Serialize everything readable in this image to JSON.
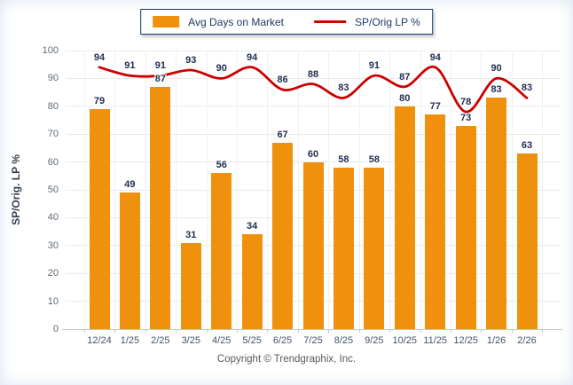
{
  "legend": {
    "bar_label": "Avg Days on Market",
    "line_label": "SP/Orig LP %"
  },
  "y_axis": {
    "title": "SP/Orig. LP %",
    "tick_min": 0,
    "tick_max": 100,
    "tick_step": 10
  },
  "footer": {
    "copyright": "Copyright © Trendgraphix, Inc."
  },
  "colors": {
    "bar": "#F0910D",
    "line": "#CC0000",
    "value_label": "#1F2E50",
    "legend_border": "#17375E"
  },
  "chart_data": {
    "type": "bar",
    "title": "",
    "xlabel": "",
    "ylabel": "SP/Orig. LP %",
    "ylim": [
      0,
      100
    ],
    "grid": true,
    "legend_position": "top-center",
    "categories": [
      "12/24",
      "1/25",
      "2/25",
      "3/25",
      "4/25",
      "5/25",
      "6/25",
      "7/25",
      "8/25",
      "9/25",
      "10/25",
      "11/25",
      "12/25",
      "1/26",
      "2/26"
    ],
    "series": [
      {
        "name": "Avg Days on Market",
        "type": "bar",
        "color": "#F0910D",
        "values": [
          79,
          49,
          87,
          31,
          56,
          34,
          67,
          60,
          58,
          58,
          80,
          77,
          73,
          83,
          63
        ]
      },
      {
        "name": "SP/Orig LP %",
        "type": "line",
        "color": "#CC0000",
        "values": [
          94,
          91,
          91,
          93,
          90,
          94,
          86,
          88,
          83,
          91,
          87,
          94,
          78,
          90,
          83
        ]
      }
    ]
  }
}
